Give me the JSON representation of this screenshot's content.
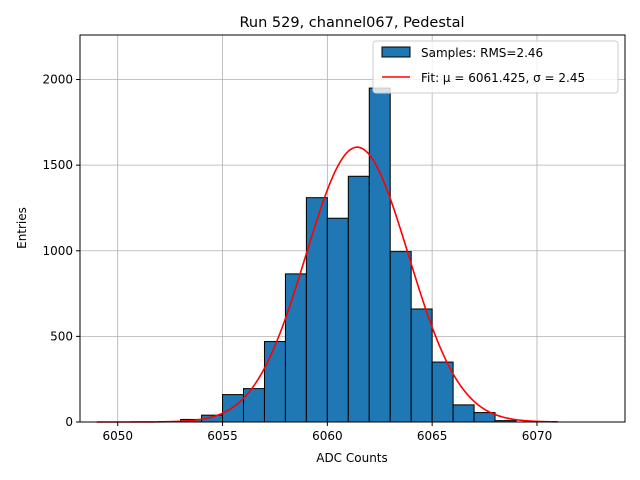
{
  "chart_data": {
    "type": "bar",
    "title": "Run 529, channel067, Pedestal",
    "xlabel": "ADC Counts",
    "ylabel": "Entries",
    "xlim": [
      6048.2,
      6074.2
    ],
    "ylim": [
      0,
      2260
    ],
    "xticks": [
      6050,
      6055,
      6060,
      6065,
      6070
    ],
    "yticks": [
      0,
      500,
      1000,
      1500,
      2000
    ],
    "grid": true,
    "legend_position": "top-right",
    "histogram": {
      "name": "Samples: RMS=2.46",
      "color": "#1f77b4",
      "bin_width": 1,
      "bins": [
        {
          "x0": 6053,
          "x1": 6054,
          "count": 15
        },
        {
          "x0": 6054,
          "x1": 6055,
          "count": 40
        },
        {
          "x0": 6055,
          "x1": 6056,
          "count": 160
        },
        {
          "x0": 6056,
          "x1": 6057,
          "count": 195
        },
        {
          "x0": 6057,
          "x1": 6058,
          "count": 470
        },
        {
          "x0": 6058,
          "x1": 6059,
          "count": 865
        },
        {
          "x0": 6059,
          "x1": 6060,
          "count": 1310
        },
        {
          "x0": 6060,
          "x1": 6061,
          "count": 1190
        },
        {
          "x0": 6061,
          "x1": 6062,
          "count": 1435
        },
        {
          "x0": 6062,
          "x1": 6063,
          "count": 1950
        },
        {
          "x0": 6063,
          "x1": 6064,
          "count": 995
        },
        {
          "x0": 6064,
          "x1": 6065,
          "count": 660
        },
        {
          "x0": 6065,
          "x1": 6066,
          "count": 350
        },
        {
          "x0": 6066,
          "x1": 6067,
          "count": 100
        },
        {
          "x0": 6067,
          "x1": 6068,
          "count": 55
        },
        {
          "x0": 6068,
          "x1": 6069,
          "count": 8
        }
      ]
    },
    "fit": {
      "name": "Fit: μ = 6061.425, σ = 2.45",
      "color": "#ff0000",
      "mu": 6061.425,
      "sigma": 2.45,
      "peak": 1605,
      "x_range": [
        6049,
        6071
      ]
    }
  }
}
